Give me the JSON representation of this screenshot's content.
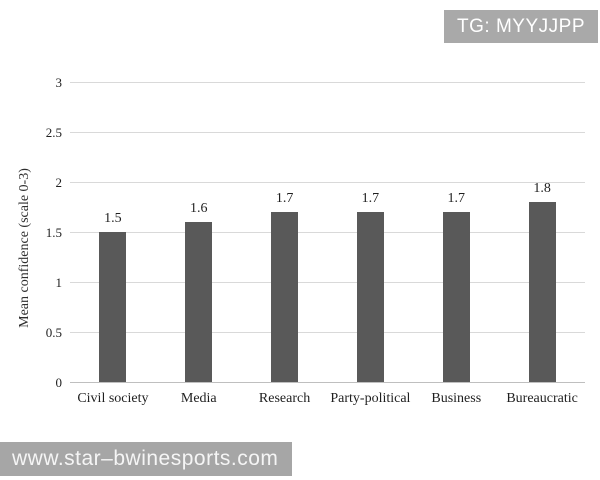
{
  "tg_badge": {
    "label": "TG: MYYJJPP",
    "background": "#a9a9a9",
    "text_color": "#ffffff"
  },
  "watermark": {
    "text": "www.star–bwinesports.com",
    "background": "#a6a6a6",
    "text_color": "#f5f5f5"
  },
  "chart_data": {
    "type": "bar",
    "title": "",
    "ylabel": "Mean confidence (scale 0-3)",
    "xlabel": "",
    "categories": [
      "Civil society",
      "Media",
      "Research",
      "Party-political",
      "Business",
      "Bureaucratic"
    ],
    "values": [
      1.5,
      1.6,
      1.7,
      1.7,
      1.7,
      1.8
    ],
    "value_labels": [
      "1.5",
      "1.6",
      "1.7",
      "1.7",
      "1.7",
      "1.8"
    ],
    "ylim": [
      0,
      3
    ],
    "yticks": [
      0,
      0.5,
      1,
      1.5,
      2,
      2.5,
      3
    ],
    "ytick_labels": [
      "0",
      "0.5",
      "1",
      "1.5",
      "2",
      "2.5",
      "3"
    ],
    "grid": "horizontal",
    "legend": "none",
    "colors": {
      "bar": "#595959",
      "gridline": "#d9d9d9",
      "baseline": "#bfbfbf",
      "text": "#1f1f1f"
    }
  }
}
